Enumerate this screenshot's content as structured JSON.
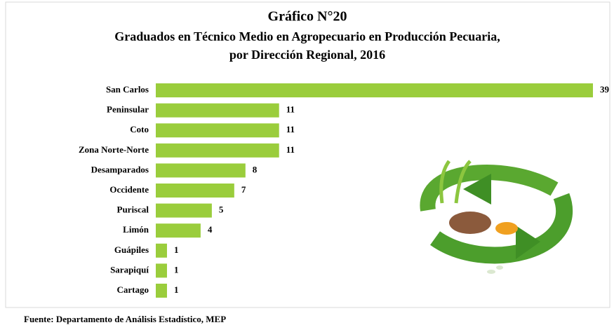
{
  "chart_data": {
    "type": "bar",
    "orientation": "horizontal",
    "title": "Gráfico N°20",
    "subtitle": [
      "Graduados  en Técnico Medio en Agropecuario en Producción Pecuaria,",
      "por Dirección Regional, 2016"
    ],
    "categories": [
      "San Carlos",
      "Peninsular",
      "Coto",
      "Zona Norte-Norte",
      "Desamparados",
      "Occidente",
      "Puriscal",
      "Limón",
      "Guápiles",
      "Sarapiquí",
      "Cartago"
    ],
    "values": [
      39,
      11,
      11,
      11,
      8,
      7,
      5,
      4,
      1,
      1,
      1
    ],
    "color": "#9acd3c",
    "source": "Fuente: Departamento de Análisis Estadístico, MEP"
  }
}
